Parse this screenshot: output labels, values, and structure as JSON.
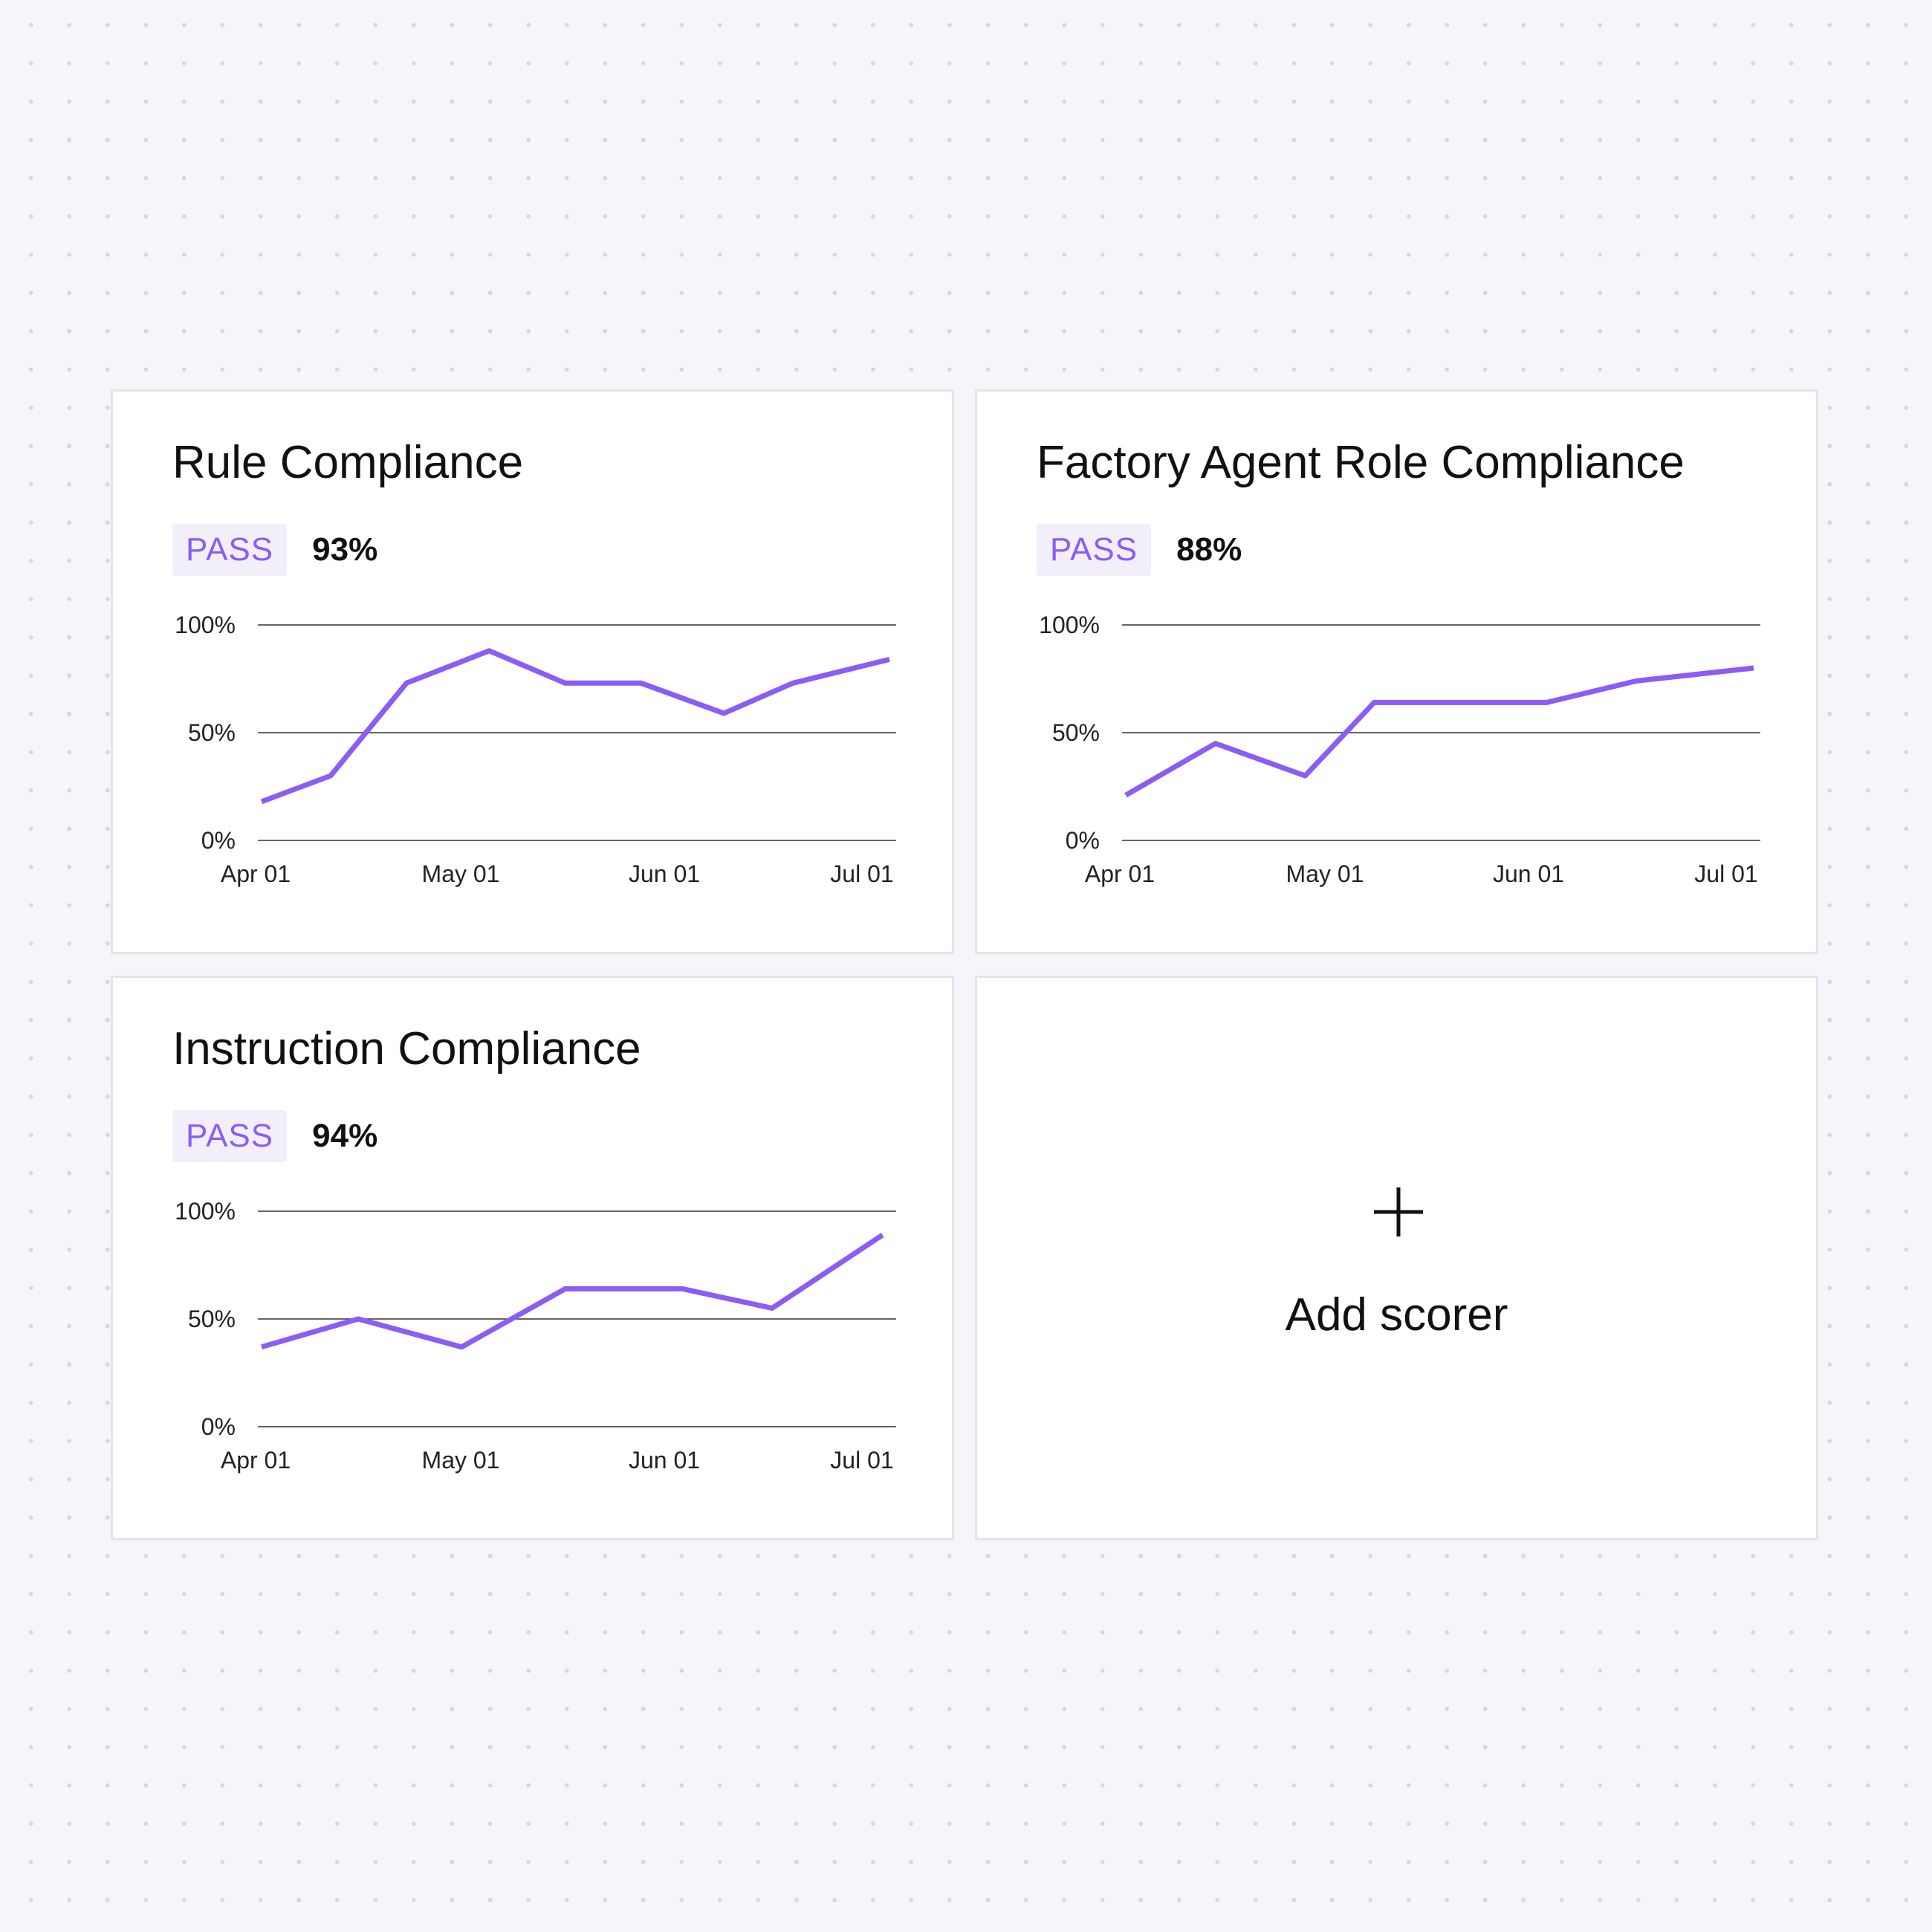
{
  "cards": [
    {
      "title": "Rule Compliance",
      "status": "PASS",
      "score": "93%",
      "chart_data": {
        "type": "line",
        "x": [
          "2024-04-01",
          "2024-04-11",
          "2024-04-22",
          "2024-05-04",
          "2024-05-15",
          "2024-05-26",
          "2024-06-07",
          "2024-06-17",
          "2024-07-01"
        ],
        "series": [
          {
            "values": [
              18,
              30,
              73,
              88,
              73,
              73,
              59,
              73,
              84
            ]
          }
        ],
        "xticks": [
          "Apr 01",
          "May 01",
          "Jun 01",
          "Jul 01"
        ],
        "yticks": [
          "0%",
          "50%",
          "100%"
        ],
        "ylim": [
          0,
          100
        ],
        "grid": true,
        "line_color": "#8b5cf6"
      }
    },
    {
      "title": "Factory Agent Role Compliance",
      "status": "PASS",
      "score": "88%",
      "chart_data": {
        "type": "line",
        "x": [
          "2024-04-01",
          "2024-04-14",
          "2024-04-27",
          "2024-05-07",
          "2024-05-20",
          "2024-06-01",
          "2024-06-14",
          "2024-07-01"
        ],
        "series": [
          {
            "values": [
              21,
              45,
              30,
              64,
              64,
              64,
              74,
              80
            ]
          }
        ],
        "xticks": [
          "Apr 01",
          "May 01",
          "Jun 01",
          "Jul 01"
        ],
        "yticks": [
          "0%",
          "50%",
          "100%"
        ],
        "ylim": [
          0,
          100
        ],
        "grid": true,
        "line_color": "#8b5cf6"
      }
    },
    {
      "title": "Instruction Compliance",
      "status": "PASS",
      "score": "94%",
      "chart_data": {
        "type": "line",
        "x": [
          "2024-04-01",
          "2024-04-15",
          "2024-04-30",
          "2024-05-15",
          "2024-06-01",
          "2024-06-14",
          "2024-06-22",
          "2024-06-30"
        ],
        "series": [
          {
            "values": [
              37,
              50,
              37,
              64,
              64,
              55,
              72,
              89
            ]
          }
        ],
        "xticks": [
          "Apr 01",
          "May 01",
          "Jun 01",
          "Jul 01"
        ],
        "yticks": [
          "0%",
          "50%",
          "100%"
        ],
        "ylim": [
          0,
          100
        ],
        "grid": true,
        "line_color": "#8b5cf6"
      }
    }
  ],
  "add_card": {
    "label": "Add scorer",
    "icon": "plus-icon"
  }
}
